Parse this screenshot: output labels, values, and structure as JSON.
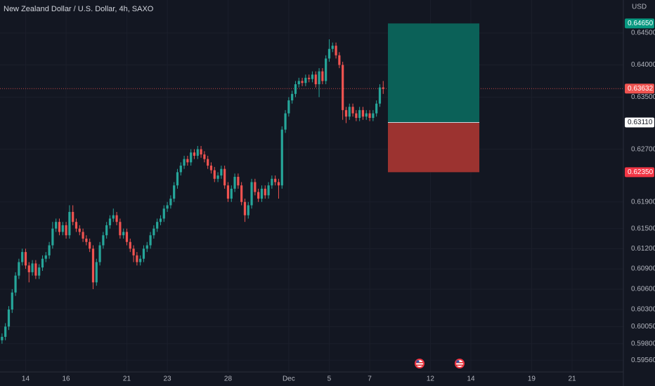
{
  "chart_data": {
    "type": "candlestick",
    "title": "New Zealand Dollar / U.S. Dollar, 4h, SAXO",
    "y_axis_label": "USD",
    "log_scale": true,
    "grid": true,
    "up_color": "#26a69a",
    "down_color": "#ef5350",
    "ylim": [
      0.5939,
      0.6502
    ],
    "yticks": [
      {
        "value": 0.645,
        "label": "0.64500"
      },
      {
        "value": 0.64,
        "label": "0.64000"
      },
      {
        "value": 0.635,
        "label": "0.63500"
      },
      {
        "value": 0.627,
        "label": "0.62700"
      },
      {
        "value": 0.619,
        "label": "0.61900"
      },
      {
        "value": 0.615,
        "label": "0.61500"
      },
      {
        "value": 0.612,
        "label": "0.61200"
      },
      {
        "value": 0.609,
        "label": "0.60900"
      },
      {
        "value": 0.606,
        "label": "0.60600"
      },
      {
        "value": 0.603,
        "label": "0.60300"
      },
      {
        "value": 0.6005,
        "label": "0.60050"
      },
      {
        "value": 0.598,
        "label": "0.59800"
      },
      {
        "value": 0.5956,
        "label": "0.59560"
      }
    ],
    "xlim": [
      -0.6,
      184.2
    ],
    "xticks": [
      {
        "value": 7,
        "label": "14"
      },
      {
        "value": 19,
        "label": "16"
      },
      {
        "value": 37,
        "label": "21"
      },
      {
        "value": 49,
        "label": "23"
      },
      {
        "value": 67,
        "label": "28"
      },
      {
        "value": 85,
        "label": "Dec"
      },
      {
        "value": 97,
        "label": "5"
      },
      {
        "value": 109,
        "label": "7"
      },
      {
        "value": 127,
        "label": "12"
      },
      {
        "value": 139,
        "label": "14"
      },
      {
        "value": 157,
        "label": "19"
      },
      {
        "value": 169,
        "label": "21"
      }
    ],
    "ohlc": [
      [
        0.5985,
        0.5995,
        0.598,
        0.599
      ],
      [
        0.599,
        0.601,
        0.5985,
        0.6005
      ],
      [
        0.6005,
        0.6035,
        0.6,
        0.603
      ],
      [
        0.603,
        0.606,
        0.6025,
        0.6055
      ],
      [
        0.6055,
        0.6085,
        0.605,
        0.608
      ],
      [
        0.608,
        0.6105,
        0.6075,
        0.61
      ],
      [
        0.61,
        0.612,
        0.6095,
        0.6115
      ],
      [
        0.6115,
        0.612,
        0.609,
        0.6095
      ],
      [
        0.6095,
        0.61,
        0.607,
        0.6085
      ],
      [
        0.6085,
        0.6103,
        0.608,
        0.6098
      ],
      [
        0.6098,
        0.6103,
        0.6075,
        0.608
      ],
      [
        0.608,
        0.6097,
        0.6075,
        0.6092
      ],
      [
        0.6092,
        0.611,
        0.6087,
        0.6105
      ],
      [
        0.6105,
        0.6115,
        0.61,
        0.611
      ],
      [
        0.611,
        0.613,
        0.6105,
        0.6125
      ],
      [
        0.6125,
        0.616,
        0.612,
        0.615
      ],
      [
        0.615,
        0.6165,
        0.6145,
        0.616
      ],
      [
        0.616,
        0.6165,
        0.614,
        0.6145
      ],
      [
        0.6145,
        0.616,
        0.614,
        0.6155
      ],
      [
        0.6155,
        0.616,
        0.6135,
        0.614
      ],
      [
        0.614,
        0.6185,
        0.6135,
        0.6175
      ],
      [
        0.6175,
        0.6185,
        0.6155,
        0.616
      ],
      [
        0.616,
        0.6165,
        0.6145,
        0.615
      ],
      [
        0.615,
        0.6155,
        0.614,
        0.6145
      ],
      [
        0.6145,
        0.615,
        0.613,
        0.6135
      ],
      [
        0.6135,
        0.614,
        0.6125,
        0.613
      ],
      [
        0.613,
        0.6135,
        0.6115,
        0.612
      ],
      [
        0.612,
        0.6125,
        0.606,
        0.607
      ],
      [
        0.607,
        0.6105,
        0.6065,
        0.61
      ],
      [
        0.61,
        0.613,
        0.6095,
        0.6125
      ],
      [
        0.6125,
        0.6145,
        0.612,
        0.614
      ],
      [
        0.614,
        0.616,
        0.6135,
        0.6155
      ],
      [
        0.6155,
        0.617,
        0.615,
        0.6165
      ],
      [
        0.6165,
        0.618,
        0.616,
        0.617
      ],
      [
        0.617,
        0.6175,
        0.6155,
        0.616
      ],
      [
        0.616,
        0.6165,
        0.6135,
        0.614
      ],
      [
        0.614,
        0.615,
        0.6135,
        0.6145
      ],
      [
        0.6145,
        0.615,
        0.6125,
        0.613
      ],
      [
        0.613,
        0.6135,
        0.6115,
        0.612
      ],
      [
        0.612,
        0.6125,
        0.61,
        0.611
      ],
      [
        0.611,
        0.6115,
        0.6095,
        0.61
      ],
      [
        0.61,
        0.611,
        0.6095,
        0.6105
      ],
      [
        0.6105,
        0.6125,
        0.61,
        0.612
      ],
      [
        0.612,
        0.613,
        0.6115,
        0.6125
      ],
      [
        0.6125,
        0.6145,
        0.612,
        0.614
      ],
      [
        0.614,
        0.6155,
        0.6135,
        0.615
      ],
      [
        0.615,
        0.6165,
        0.6145,
        0.616
      ],
      [
        0.616,
        0.617,
        0.6155,
        0.6165
      ],
      [
        0.6165,
        0.6185,
        0.616,
        0.618
      ],
      [
        0.618,
        0.619,
        0.6175,
        0.6185
      ],
      [
        0.6185,
        0.62,
        0.618,
        0.6195
      ],
      [
        0.6195,
        0.622,
        0.619,
        0.6215
      ],
      [
        0.6215,
        0.624,
        0.621,
        0.6235
      ],
      [
        0.6235,
        0.625,
        0.623,
        0.6245
      ],
      [
        0.6245,
        0.626,
        0.624,
        0.6255
      ],
      [
        0.6255,
        0.626,
        0.6245,
        0.625
      ],
      [
        0.625,
        0.627,
        0.6245,
        0.6265
      ],
      [
        0.6265,
        0.627,
        0.6255,
        0.626
      ],
      [
        0.626,
        0.6275,
        0.6255,
        0.627
      ],
      [
        0.627,
        0.6275,
        0.6257,
        0.6262
      ],
      [
        0.6262,
        0.6267,
        0.625,
        0.6255
      ],
      [
        0.6255,
        0.626,
        0.624,
        0.6245
      ],
      [
        0.6245,
        0.625,
        0.6233,
        0.6238
      ],
      [
        0.6238,
        0.6243,
        0.622,
        0.6225
      ],
      [
        0.6225,
        0.6235,
        0.622,
        0.623
      ],
      [
        0.623,
        0.6245,
        0.6225,
        0.624
      ],
      [
        0.624,
        0.6245,
        0.621,
        0.6215
      ],
      [
        0.6215,
        0.622,
        0.619,
        0.6195
      ],
      [
        0.6195,
        0.6215,
        0.619,
        0.621
      ],
      [
        0.621,
        0.6233,
        0.6205,
        0.6228
      ],
      [
        0.6228,
        0.6233,
        0.621,
        0.6215
      ],
      [
        0.6215,
        0.622,
        0.6185,
        0.619
      ],
      [
        0.619,
        0.6195,
        0.616,
        0.617
      ],
      [
        0.617,
        0.619,
        0.6165,
        0.6185
      ],
      [
        0.6185,
        0.6225,
        0.618,
        0.622
      ],
      [
        0.622,
        0.6225,
        0.62,
        0.6205
      ],
      [
        0.6205,
        0.621,
        0.619,
        0.6195
      ],
      [
        0.6195,
        0.6215,
        0.619,
        0.621
      ],
      [
        0.621,
        0.6215,
        0.6195,
        0.62
      ],
      [
        0.62,
        0.622,
        0.6195,
        0.6215
      ],
      [
        0.6215,
        0.623,
        0.621,
        0.6225
      ],
      [
        0.6225,
        0.623,
        0.6215,
        0.622
      ],
      [
        0.622,
        0.6225,
        0.6195,
        0.6215
      ],
      [
        0.6215,
        0.6305,
        0.621,
        0.63
      ],
      [
        0.63,
        0.633,
        0.6295,
        0.6325
      ],
      [
        0.6325,
        0.635,
        0.632,
        0.6345
      ],
      [
        0.6345,
        0.636,
        0.634,
        0.6355
      ],
      [
        0.6355,
        0.6375,
        0.635,
        0.637
      ],
      [
        0.637,
        0.638,
        0.6365,
        0.6375
      ],
      [
        0.6375,
        0.638,
        0.6367,
        0.6372
      ],
      [
        0.6372,
        0.6385,
        0.6367,
        0.638
      ],
      [
        0.638,
        0.6385,
        0.6373,
        0.6378
      ],
      [
        0.6378,
        0.639,
        0.6373,
        0.6385
      ],
      [
        0.6385,
        0.639,
        0.6365,
        0.637
      ],
      [
        0.637,
        0.6395,
        0.635,
        0.639
      ],
      [
        0.639,
        0.6395,
        0.637,
        0.6375
      ],
      [
        0.6375,
        0.6415,
        0.637,
        0.641
      ],
      [
        0.641,
        0.644,
        0.6405,
        0.6425
      ],
      [
        0.6425,
        0.6435,
        0.642,
        0.643
      ],
      [
        0.643,
        0.6435,
        0.641,
        0.6415
      ],
      [
        0.6415,
        0.642,
        0.6395,
        0.64
      ],
      [
        0.64,
        0.6405,
        0.6315,
        0.633
      ],
      [
        0.633,
        0.6335,
        0.631,
        0.632
      ],
      [
        0.632,
        0.634,
        0.6315,
        0.6335
      ],
      [
        0.6335,
        0.634,
        0.632,
        0.6325
      ],
      [
        0.6325,
        0.633,
        0.6313,
        0.6318
      ],
      [
        0.6318,
        0.6335,
        0.6313,
        0.633
      ],
      [
        0.633,
        0.6335,
        0.6315,
        0.632
      ],
      [
        0.632,
        0.633,
        0.6315,
        0.6325
      ],
      [
        0.6325,
        0.633,
        0.6313,
        0.6318
      ],
      [
        0.6318,
        0.633,
        0.6313,
        0.6325
      ],
      [
        0.6325,
        0.6345,
        0.632,
        0.634
      ],
      [
        0.634,
        0.637,
        0.6335,
        0.6365
      ],
      [
        0.6365,
        0.6375,
        0.6355,
        0.6363
      ]
    ],
    "position": {
      "entry": 0.6311,
      "target": 0.6465,
      "stop": 0.6235,
      "x_start": 114.4,
      "x_end": 141.5,
      "profit_color": "#0b6158",
      "loss_color": "#9c3330"
    },
    "current_price": {
      "value": 0.63632,
      "label": "0.63632",
      "color": "#ef5350"
    },
    "price_tags": [
      {
        "value": 0.6465,
        "label": "0.64650",
        "color": "#089981",
        "text_color": "#ffffff"
      },
      {
        "value": 0.6311,
        "label": "0.63110",
        "color": "#ffffff",
        "text_color": "#131722"
      },
      {
        "value": 0.6235,
        "label": "0.62350",
        "color": "#f23645",
        "text_color": "#ffffff"
      }
    ]
  }
}
